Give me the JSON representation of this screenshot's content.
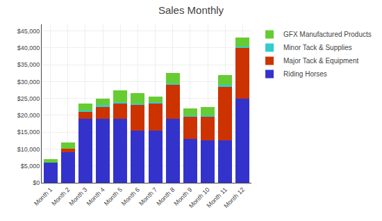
{
  "chart_data": {
    "type": "bar",
    "title": "Sales Monthly",
    "stacked": true,
    "categories": [
      "Month 1",
      "Month 2",
      "Month 3",
      "Month 4",
      "Month 5",
      "Month 6",
      "Month 7",
      "Month 8",
      "Month 9",
      "Month 10",
      "Month 11",
      "Month 12"
    ],
    "series": [
      {
        "name": "Riding Horses",
        "color": "#3333CC",
        "values": [
          6000,
          9000,
          19000,
          19000,
          19000,
          15500,
          15500,
          19000,
          13000,
          12500,
          12500,
          25000
        ]
      },
      {
        "name": "Major Tack & Equipment",
        "color": "#CC3300",
        "values": [
          0,
          1000,
          2000,
          3500,
          4500,
          7500,
          8000,
          10000,
          6500,
          7000,
          16000,
          15000
        ]
      },
      {
        "name": "Minor Tack & Supplies",
        "color": "#33CCCC",
        "values": [
          0,
          0,
          500,
          500,
          500,
          500,
          500,
          500,
          500,
          500,
          500,
          500
        ]
      },
      {
        "name": "GFX Manufactured Products",
        "color": "#66CC33",
        "values": [
          1000,
          2000,
          2000,
          2000,
          3500,
          3000,
          1500,
          3000,
          2000,
          2500,
          3000,
          2500
        ]
      }
    ],
    "ylim": [
      0,
      47000
    ],
    "yticks": [
      {
        "value": 0,
        "label": "$0"
      },
      {
        "value": 5000,
        "label": "$5,000"
      },
      {
        "value": 10000,
        "label": "$10,000"
      },
      {
        "value": 15000,
        "label": "$15,000"
      },
      {
        "value": 20000,
        "label": "$20,000"
      },
      {
        "value": 25000,
        "label": "$25,000"
      },
      {
        "value": 30000,
        "label": "$30,000"
      },
      {
        "value": 35000,
        "label": "$35,000"
      },
      {
        "value": 40000,
        "label": "$40,000"
      },
      {
        "value": 45000,
        "label": "$45,000"
      }
    ],
    "grid": true,
    "legend": "right"
  }
}
